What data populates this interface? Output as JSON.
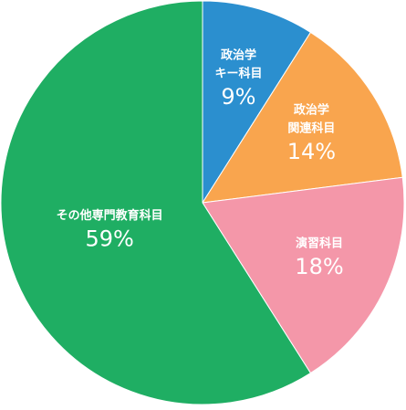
{
  "chart_data": {
    "type": "pie",
    "categories": [
      [
        "政治学",
        "キー科目"
      ],
      [
        "政治学",
        "関連科目"
      ],
      [
        "演習科目"
      ],
      [
        "その他専門教育科目"
      ]
    ],
    "values": [
      9,
      14,
      18,
      59
    ],
    "value_labels": [
      "9%",
      "14%",
      "18%",
      "59%"
    ],
    "colors": [
      "#2b8fcf",
      "#f9a54e",
      "#f497a9",
      "#1fae63"
    ]
  }
}
